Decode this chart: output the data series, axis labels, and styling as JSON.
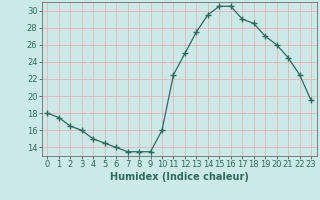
{
  "x": [
    0,
    1,
    2,
    3,
    4,
    5,
    6,
    7,
    8,
    9,
    10,
    11,
    12,
    13,
    14,
    15,
    16,
    17,
    18,
    19,
    20,
    21,
    22,
    23
  ],
  "y": [
    18,
    17.5,
    16.5,
    16,
    15,
    14.5,
    14,
    13.5,
    13.5,
    13.5,
    16,
    22.5,
    25,
    27.5,
    29.5,
    30.5,
    30.5,
    29,
    28.5,
    27,
    26,
    24.5,
    22.5,
    19.5
  ],
  "line_color": "#2e6b5e",
  "marker": "+",
  "marker_size": 4,
  "bg_color": "#cce9e9",
  "grid_color": "#e8b4b4",
  "xlabel": "Humidex (Indice chaleur)",
  "xlim": [
    -0.5,
    23.5
  ],
  "ylim": [
    13,
    31
  ],
  "yticks": [
    14,
    16,
    18,
    20,
    22,
    24,
    26,
    28,
    30
  ],
  "xticks": [
    0,
    1,
    2,
    3,
    4,
    5,
    6,
    7,
    8,
    9,
    10,
    11,
    12,
    13,
    14,
    15,
    16,
    17,
    18,
    19,
    20,
    21,
    22,
    23
  ],
  "label_fontsize": 7,
  "tick_fontsize": 6
}
